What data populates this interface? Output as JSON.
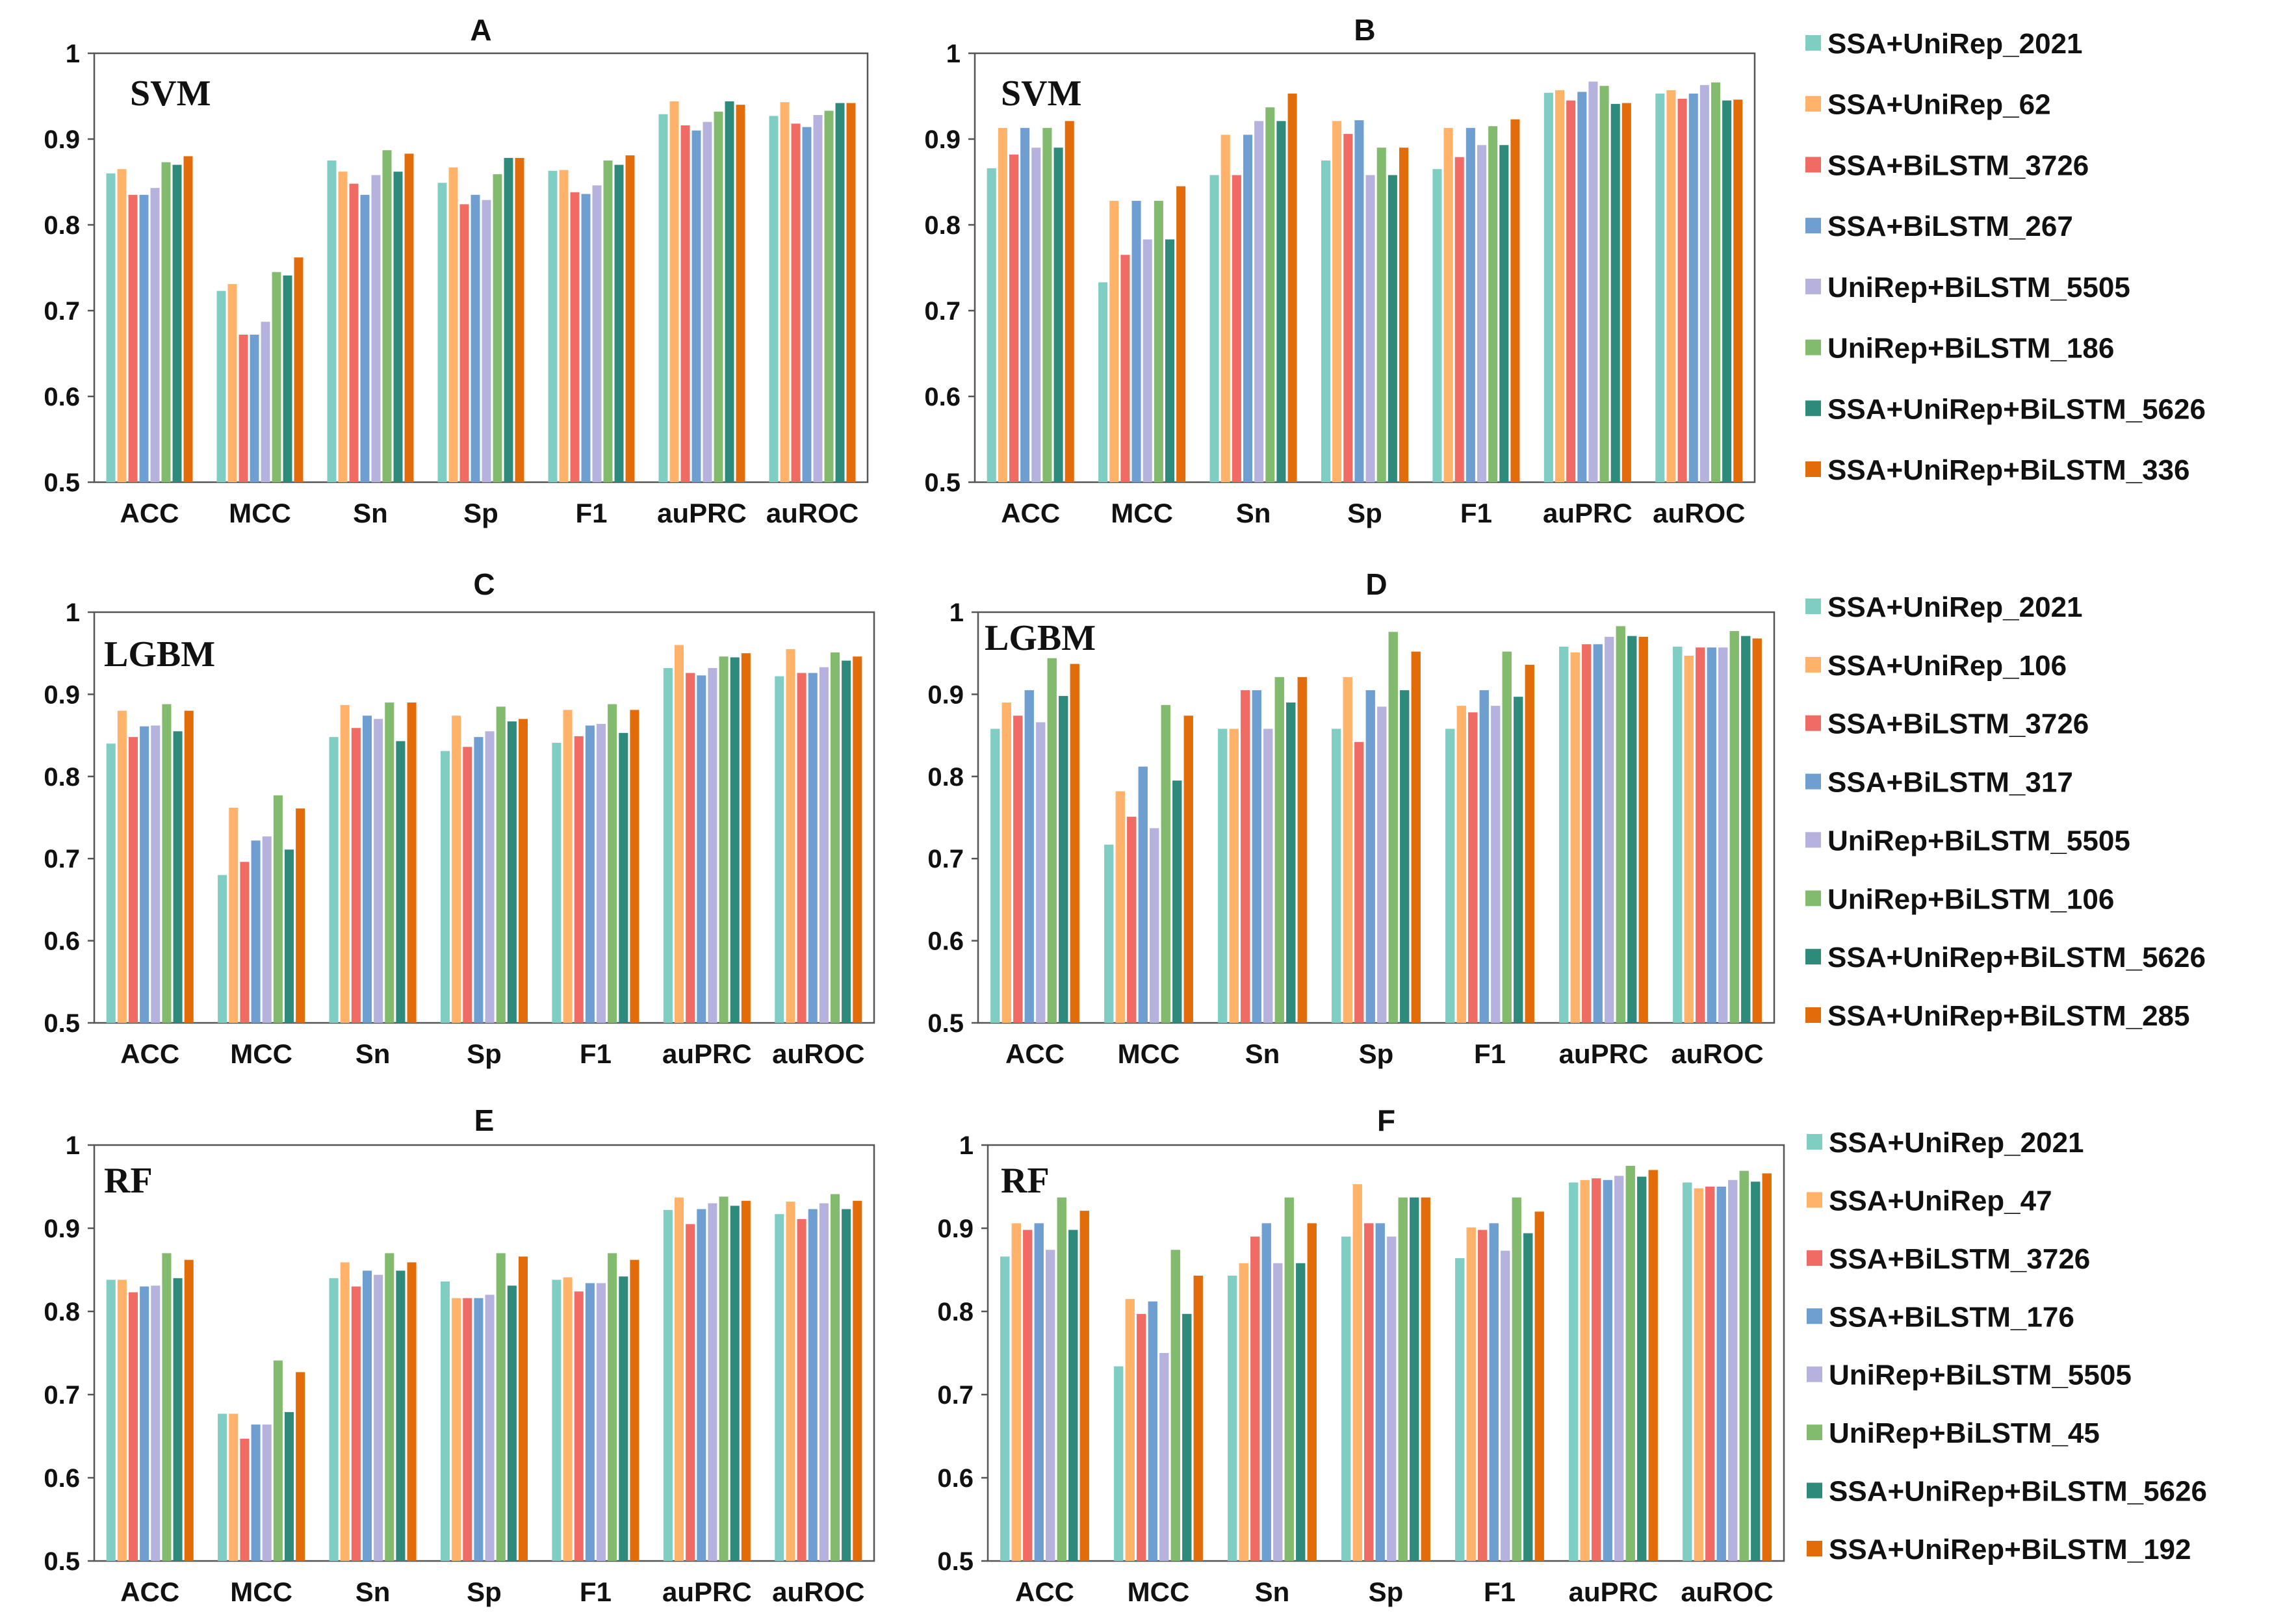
{
  "colors": [
    "#7fcdc3",
    "#ffb36a",
    "#f06b63",
    "#6e9fd0",
    "#b5b2de",
    "#82ba6e",
    "#2e8b7b",
    "#e36c0a"
  ],
  "chart_data": [
    {
      "type": "bar",
      "panel": "A",
      "title": "A",
      "classifier": "SVM",
      "categories": [
        "ACC",
        "MCC",
        "Sn",
        "Sp",
        "F1",
        "auPRC",
        "auROC"
      ],
      "ylim": [
        0.5,
        1
      ],
      "yticks": [
        "0.5",
        "0.6",
        "0.7",
        "0.8",
        "0.9",
        "1"
      ],
      "series": [
        {
          "name": "SSA+UniRep_2021",
          "values": [
            0.86,
            0.723,
            0.875,
            0.849,
            0.863,
            0.929,
            0.927
          ]
        },
        {
          "name": "SSA+UniRep_62",
          "values": [
            0.865,
            0.731,
            0.862,
            0.867,
            0.864,
            0.944,
            0.943
          ]
        },
        {
          "name": "SSA+BiLSTM_3726",
          "values": [
            0.835,
            0.672,
            0.848,
            0.824,
            0.838,
            0.916,
            0.918
          ]
        },
        {
          "name": "SSA+BiLSTM_267",
          "values": [
            0.835,
            0.672,
            0.835,
            0.835,
            0.836,
            0.91,
            0.914
          ]
        },
        {
          "name": "UniRep+BiLSTM_5505",
          "values": [
            0.843,
            0.687,
            0.858,
            0.829,
            0.846,
            0.92,
            0.928
          ]
        },
        {
          "name": "UniRep+BiLSTM_186",
          "values": [
            0.873,
            0.745,
            0.887,
            0.859,
            0.875,
            0.932,
            0.933
          ]
        },
        {
          "name": "SSA+UniRep+BiLSTM_5626",
          "values": [
            0.87,
            0.741,
            0.862,
            0.878,
            0.87,
            0.944,
            0.942
          ]
        },
        {
          "name": "SSA+UniRep+BiLSTM_336",
          "values": [
            0.88,
            0.762,
            0.883,
            0.878,
            0.881,
            0.94,
            0.942
          ]
        }
      ]
    },
    {
      "type": "bar",
      "panel": "B",
      "title": "B",
      "classifier": "SVM",
      "categories": [
        "ACC",
        "MCC",
        "Sn",
        "Sp",
        "F1",
        "auPRC",
        "auROC"
      ],
      "ylim": [
        0.5,
        1
      ],
      "yticks": [
        "0.5",
        "0.6",
        "0.7",
        "0.8",
        "0.9",
        "1"
      ],
      "series": [
        {
          "name": "SSA+UniRep_2021",
          "values": [
            0.866,
            0.733,
            0.858,
            0.875,
            0.865,
            0.954,
            0.953
          ]
        },
        {
          "name": "SSA+UniRep_62",
          "values": [
            0.913,
            0.828,
            0.905,
            0.921,
            0.913,
            0.957,
            0.957
          ]
        },
        {
          "name": "SSA+BiLSTM_3726",
          "values": [
            0.882,
            0.765,
            0.858,
            0.906,
            0.879,
            0.945,
            0.947
          ]
        },
        {
          "name": "SSA+BiLSTM_267",
          "values": [
            0.913,
            0.828,
            0.905,
            0.922,
            0.913,
            0.955,
            0.953
          ]
        },
        {
          "name": "UniRep+BiLSTM_5505",
          "values": [
            0.89,
            0.783,
            0.921,
            0.858,
            0.893,
            0.967,
            0.963
          ]
        },
        {
          "name": "UniRep+BiLSTM_186",
          "values": [
            0.913,
            0.828,
            0.937,
            0.89,
            0.915,
            0.962,
            0.966
          ]
        },
        {
          "name": "SSA+UniRep+BiLSTM_5626",
          "values": [
            0.89,
            0.783,
            0.921,
            0.858,
            0.893,
            0.941,
            0.945
          ]
        },
        {
          "name": "SSA+UniRep+BiLSTM_336",
          "values": [
            0.921,
            0.845,
            0.953,
            0.89,
            0.923,
            0.942,
            0.946
          ]
        }
      ]
    },
    {
      "type": "bar",
      "panel": "C",
      "title": "C",
      "classifier": "LGBM",
      "categories": [
        "ACC",
        "MCC",
        "Sn",
        "Sp",
        "F1",
        "auPRC",
        "auROC"
      ],
      "ylim": [
        0.5,
        1
      ],
      "yticks": [
        "0.5",
        "0.6",
        "0.7",
        "0.8",
        "0.9",
        "1"
      ],
      "series": [
        {
          "name": "SSA+UniRep_2021",
          "values": [
            0.84,
            0.68,
            0.848,
            0.831,
            0.841,
            0.932,
            0.922
          ]
        },
        {
          "name": "SSA+UniRep_106",
          "values": [
            0.88,
            0.762,
            0.887,
            0.874,
            0.881,
            0.96,
            0.955
          ]
        },
        {
          "name": "SSA+BiLSTM_3726",
          "values": [
            0.848,
            0.696,
            0.859,
            0.836,
            0.849,
            0.926,
            0.926
          ]
        },
        {
          "name": "SSA+BiLSTM_317",
          "values": [
            0.861,
            0.722,
            0.874,
            0.848,
            0.862,
            0.923,
            0.926
          ]
        },
        {
          "name": "UniRep+BiLSTM_5505",
          "values": [
            0.862,
            0.727,
            0.87,
            0.855,
            0.864,
            0.932,
            0.933
          ]
        },
        {
          "name": "UniRep+BiLSTM_106",
          "values": [
            0.888,
            0.777,
            0.89,
            0.885,
            0.888,
            0.946,
            0.951
          ]
        },
        {
          "name": "SSA+UniRep+BiLSTM_5626",
          "values": [
            0.855,
            0.711,
            0.843,
            0.867,
            0.853,
            0.945,
            0.941
          ]
        },
        {
          "name": "SSA+UniRep+BiLSTM_285",
          "values": [
            0.88,
            0.761,
            0.89,
            0.87,
            0.881,
            0.95,
            0.946
          ]
        }
      ]
    },
    {
      "type": "bar",
      "panel": "D",
      "title": "D",
      "classifier": "LGBM",
      "categories": [
        "ACC",
        "MCC",
        "Sn",
        "Sp",
        "F1",
        "auPRC",
        "auROC"
      ],
      "ylim": [
        0.5,
        1
      ],
      "yticks": [
        "0.5",
        "0.6",
        "0.7",
        "0.8",
        "0.9",
        "1"
      ],
      "series": [
        {
          "name": "SSA+UniRep_2021",
          "values": [
            0.858,
            0.717,
            0.858,
            0.858,
            0.858,
            0.958,
            0.958
          ]
        },
        {
          "name": "SSA+UniRep_106",
          "values": [
            0.89,
            0.782,
            0.858,
            0.921,
            0.886,
            0.951,
            0.947
          ]
        },
        {
          "name": "SSA+BiLSTM_3726",
          "values": [
            0.874,
            0.751,
            0.905,
            0.842,
            0.878,
            0.961,
            0.957
          ]
        },
        {
          "name": "SSA+BiLSTM_317",
          "values": [
            0.905,
            0.812,
            0.905,
            0.905,
            0.905,
            0.961,
            0.957
          ]
        },
        {
          "name": "UniRep+BiLSTM_5505",
          "values": [
            0.866,
            0.737,
            0.858,
            0.885,
            0.886,
            0.97,
            0.957
          ]
        },
        {
          "name": "UniRep+BiLSTM_106",
          "values": [
            0.944,
            0.887,
            0.921,
            0.976,
            0.952,
            0.983,
            0.977
          ]
        },
        {
          "name": "SSA+UniRep+BiLSTM_5626",
          "values": [
            0.898,
            0.795,
            0.89,
            0.905,
            0.897,
            0.971,
            0.971
          ]
        },
        {
          "name": "SSA+UniRep+BiLSTM_285",
          "values": [
            0.937,
            0.874,
            0.921,
            0.952,
            0.936,
            0.97,
            0.968
          ]
        }
      ]
    },
    {
      "type": "bar",
      "panel": "E",
      "title": "E",
      "classifier": "RF",
      "categories": [
        "ACC",
        "MCC",
        "Sn",
        "Sp",
        "F1",
        "auPRC",
        "auROC"
      ],
      "ylim": [
        0.5,
        1
      ],
      "yticks": [
        "0.5",
        "0.6",
        "0.7",
        "0.8",
        "0.9",
        "1"
      ],
      "series": [
        {
          "name": "SSA+UniRep_2021",
          "values": [
            0.838,
            0.677,
            0.84,
            0.836,
            0.838,
            0.922,
            0.917
          ]
        },
        {
          "name": "SSA+UniRep_47",
          "values": [
            0.838,
            0.677,
            0.859,
            0.816,
            0.841,
            0.937,
            0.932
          ]
        },
        {
          "name": "SSA+BiLSTM_3726",
          "values": [
            0.823,
            0.647,
            0.83,
            0.816,
            0.824,
            0.905,
            0.911
          ]
        },
        {
          "name": "SSA+BiLSTM_176",
          "values": [
            0.83,
            0.664,
            0.849,
            0.816,
            0.834,
            0.923,
            0.923
          ]
        },
        {
          "name": "UniRep+BiLSTM_5505",
          "values": [
            0.831,
            0.664,
            0.844,
            0.82,
            0.834,
            0.93,
            0.93
          ]
        },
        {
          "name": "UniRep+BiLSTM_45",
          "values": [
            0.87,
            0.741,
            0.87,
            0.87,
            0.87,
            0.938,
            0.941
          ]
        },
        {
          "name": "SSA+UniRep+BiLSTM_5626",
          "values": [
            0.84,
            0.679,
            0.849,
            0.831,
            0.842,
            0.927,
            0.923
          ]
        },
        {
          "name": "SSA+UniRep+BiLSTM_192",
          "values": [
            0.862,
            0.727,
            0.859,
            0.866,
            0.862,
            0.933,
            0.933
          ]
        }
      ]
    },
    {
      "type": "bar",
      "panel": "F",
      "title": "F",
      "classifier": "RF",
      "categories": [
        "ACC",
        "MCC",
        "Sn",
        "Sp",
        "F1",
        "auPRC",
        "auROC"
      ],
      "ylim": [
        0.5,
        1
      ],
      "yticks": [
        "0.5",
        "0.6",
        "0.7",
        "0.8",
        "0.9",
        "1"
      ],
      "series": [
        {
          "name": "SSA+UniRep_2021",
          "values": [
            0.866,
            0.734,
            0.843,
            0.89,
            0.864,
            0.955,
            0.955
          ]
        },
        {
          "name": "SSA+UniRep_47",
          "values": [
            0.906,
            0.815,
            0.858,
            0.953,
            0.901,
            0.958,
            0.948
          ]
        },
        {
          "name": "SSA+BiLSTM_3726",
          "values": [
            0.898,
            0.797,
            0.89,
            0.906,
            0.898,
            0.96,
            0.95
          ]
        },
        {
          "name": "SSA+BiLSTM_176",
          "values": [
            0.906,
            0.812,
            0.906,
            0.906,
            0.906,
            0.958,
            0.95
          ]
        },
        {
          "name": "UniRep+BiLSTM_5505",
          "values": [
            0.874,
            0.75,
            0.858,
            0.89,
            0.873,
            0.963,
            0.958
          ]
        },
        {
          "name": "UniRep+BiLSTM_45",
          "values": [
            0.937,
            0.874,
            0.937,
            0.937,
            0.937,
            0.975,
            0.969
          ]
        },
        {
          "name": "SSA+UniRep+BiLSTM_5626",
          "values": [
            0.898,
            0.797,
            0.858,
            0.937,
            0.894,
            0.962,
            0.956
          ]
        },
        {
          "name": "SSA+UniRep+BiLSTM_192",
          "values": [
            0.921,
            0.843,
            0.906,
            0.937,
            0.92,
            0.97,
            0.966
          ]
        }
      ]
    }
  ],
  "legends": [
    [
      "SSA+UniRep_2021",
      "SSA+UniRep_62",
      "SSA+BiLSTM_3726",
      "SSA+BiLSTM_267",
      "UniRep+BiLSTM_5505",
      "UniRep+BiLSTM_186",
      "SSA+UniRep+BiLSTM_5626",
      "SSA+UniRep+BiLSTM_336"
    ],
    [
      "SSA+UniRep_2021",
      "SSA+UniRep_106",
      "SSA+BiLSTM_3726",
      "SSA+BiLSTM_317",
      "UniRep+BiLSTM_5505",
      "UniRep+BiLSTM_106",
      "SSA+UniRep+BiLSTM_5626",
      "SSA+UniRep+BiLSTM_285"
    ],
    [
      "SSA+UniRep_2021",
      "SSA+UniRep_47",
      "SSA+BiLSTM_3726",
      "SSA+BiLSTM_176",
      "UniRep+BiLSTM_5505",
      "UniRep+BiLSTM_45",
      "SSA+UniRep+BiLSTM_5626",
      "SSA+UniRep+BiLSTM_192"
    ]
  ]
}
